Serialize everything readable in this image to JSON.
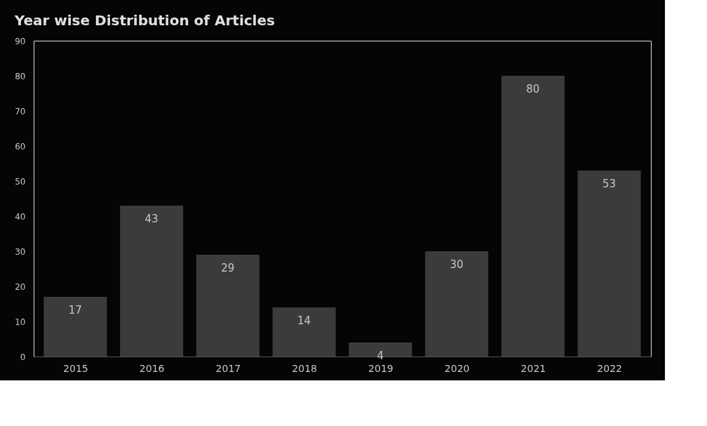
{
  "chart_data": {
    "type": "bar",
    "title": "Year wise Distribution of Articles",
    "categories": [
      "2015",
      "2016",
      "2017",
      "2018",
      "2019",
      "2020",
      "2021",
      "2022"
    ],
    "values": [
      17,
      43,
      29,
      14,
      4,
      30,
      80,
      53
    ],
    "color": "#3b3b3b",
    "ylim": [
      0,
      90
    ],
    "yticks": [
      0,
      10,
      20,
      30,
      40,
      50,
      60,
      70,
      80,
      90
    ],
    "grid": false,
    "data_labels": true
  }
}
